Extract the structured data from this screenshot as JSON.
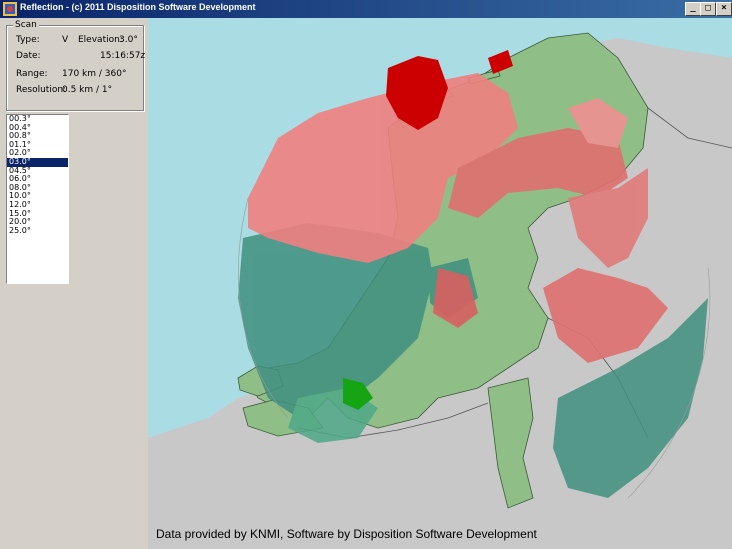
{
  "window": {
    "title": "Reflection - (c) 2011 Disposition Software Development",
    "icon": "radar-app-icon",
    "controls": {
      "minimize": "_",
      "maximize": "□",
      "close": "×"
    }
  },
  "scan": {
    "group_label": "Scan",
    "type_label": "Type:",
    "type_value": "V",
    "elevation_label": "Elevation:",
    "elevation_value": "3.0°",
    "date_label": "Date:",
    "time_value": "15:16:57z",
    "range_label": "Range:",
    "range_value": "170 km / 360°",
    "resolution_label": "Resolution:",
    "resolution_value": "0.5 km / 1°"
  },
  "elevations": {
    "items": [
      "00.3°",
      "00.4°",
      "00.8°",
      "01.1°",
      "02.0°",
      "03.0°",
      "04.5°",
      "06.0°",
      "08.0°",
      "10.0°",
      "12.0°",
      "15.0°",
      "20.0°",
      "25.0°"
    ],
    "selected_index": 5
  },
  "map": {
    "sea_color": "#a9dce3",
    "land_color": "#8fbf87",
    "foreign_land_color": "#c8c8c8",
    "echo_strong_color": "#cc0000",
    "echo_moderate_color": "#f08080",
    "echo_weak_color": "#3f8f7f"
  },
  "footer": {
    "credits": "Data provided by KNMI, Software by Disposition Software Development"
  }
}
